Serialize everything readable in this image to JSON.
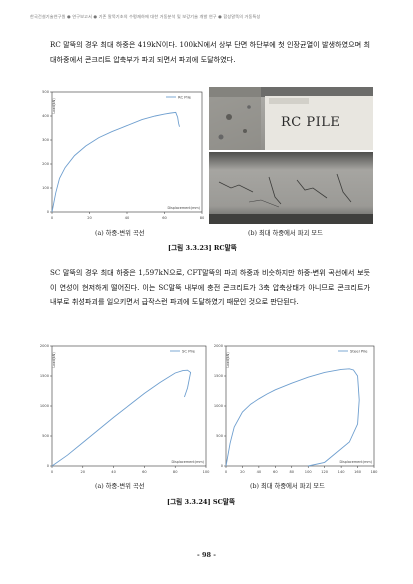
{
  "header": "한국건설기술연구원 ● 연구보고서 ● 기존 말뚝기초의 수평재하에 대한 거동분석 및 보강기술 개발 연구 ● 합성말뚝의 거동특성",
  "paragraph1": "RC 말뚝의 경우 최대 하중은 419kN이다. 100kN에서 상부 단면 하단부에 첫 인장균열이 발생하였으며 최대하중에서 콘크리트 압축부가 파괴 되면서 파괴에 도달하였다.",
  "paragraph2": "SC 말뚝의 경우 최대 하중은 1,597kN으로, CFT말뚝의 파괴 하중과 비슷하지만 하중-변위 곡선에서 보듯이 연성이 현저하게 떨어진다. 이는 SC말뚝 내부에 충전 콘크리트가 3축 압축상태가 아니므로 콘크리트가 내부로 취성파괴를 일으키면서 급작스런 파괴에 도달하였기 때문인 것으로 판단된다.",
  "photo_label": "RC PILE",
  "figure1": {
    "caption_a": "(a) 하중-변위 곡선",
    "caption_b": "(b) 최대 하중에서 파괴 모드",
    "title": "[그림 3.3.23] RC말뚝",
    "chart_data": {
      "type": "line",
      "series": [
        {
          "name": "RC Pile",
          "x": [
            0,
            2,
            4,
            7,
            12,
            18,
            25,
            32,
            40,
            48,
            55,
            60,
            63,
            66,
            67,
            67.5,
            68
          ],
          "y": [
            0,
            80,
            140,
            185,
            235,
            275,
            310,
            335,
            360,
            385,
            400,
            408,
            412,
            415,
            395,
            370,
            355
          ]
        }
      ],
      "xlim": [
        0,
        80
      ],
      "ylim": [
        0,
        500
      ],
      "xticks": [
        "0",
        "20",
        "40",
        "60",
        "80"
      ],
      "yticks": [
        "0",
        "100",
        "200",
        "300",
        "400",
        "500"
      ],
      "xlabel": "Displacement(mm)",
      "ylabel": "Load(kN)"
    }
  },
  "figure2": {
    "caption_a": "(a) 하중-변위 곡선",
    "caption_b": "(b) 최대 하중에서 파괴 모드",
    "title": "[그림 3.3.24] SC말뚝",
    "chart_data": [
      {
        "type": "line",
        "series": [
          {
            "name": "SC Pile",
            "x": [
              0,
              10,
              20,
              30,
              40,
              50,
              60,
              70,
              80,
              85,
              88,
              90,
              88,
              86
            ],
            "y": [
              0,
              180,
              390,
              600,
              810,
              1010,
              1210,
              1390,
              1550,
              1590,
              1597,
              1560,
              1300,
              1150
            ]
          }
        ],
        "xlim": [
          0,
          100
        ],
        "ylim": [
          0,
          2000
        ],
        "xticks": [
          "0",
          "20",
          "40",
          "60",
          "80",
          "100"
        ],
        "yticks": [
          "0",
          "500",
          "1000",
          "1500",
          "2000"
        ],
        "xlabel": "Displacement(mm)",
        "ylabel": "Load(kN)"
      },
      {
        "type": "line",
        "series": [
          {
            "name": "Steel Pile",
            "x": [
              0,
              5,
              10,
              20,
              30,
              40,
              50,
              60,
              80,
              100,
              120,
              140,
              150,
              155,
              160,
              162,
              160,
              150,
              120,
              100
            ],
            "y": [
              0,
              380,
              650,
              900,
              1030,
              1120,
              1200,
              1270,
              1380,
              1480,
              1560,
              1610,
              1620,
              1600,
              1500,
              1100,
              700,
              400,
              60,
              0
            ]
          }
        ],
        "xlim": [
          0,
          180
        ],
        "ylim": [
          0,
          2000
        ],
        "xticks": [
          "0",
          "20",
          "40",
          "60",
          "80",
          "100",
          "120",
          "140",
          "160",
          "180"
        ],
        "yticks": [
          "0",
          "500",
          "1000",
          "1500",
          "2000"
        ],
        "xlabel": "Displacement(mm)",
        "ylabel": "Load(kN)"
      }
    ]
  },
  "page_number": "- 98 -",
  "colors": {
    "curve": "#6f9fcf",
    "axis": "#333333",
    "grid": "#e6e6e6"
  }
}
